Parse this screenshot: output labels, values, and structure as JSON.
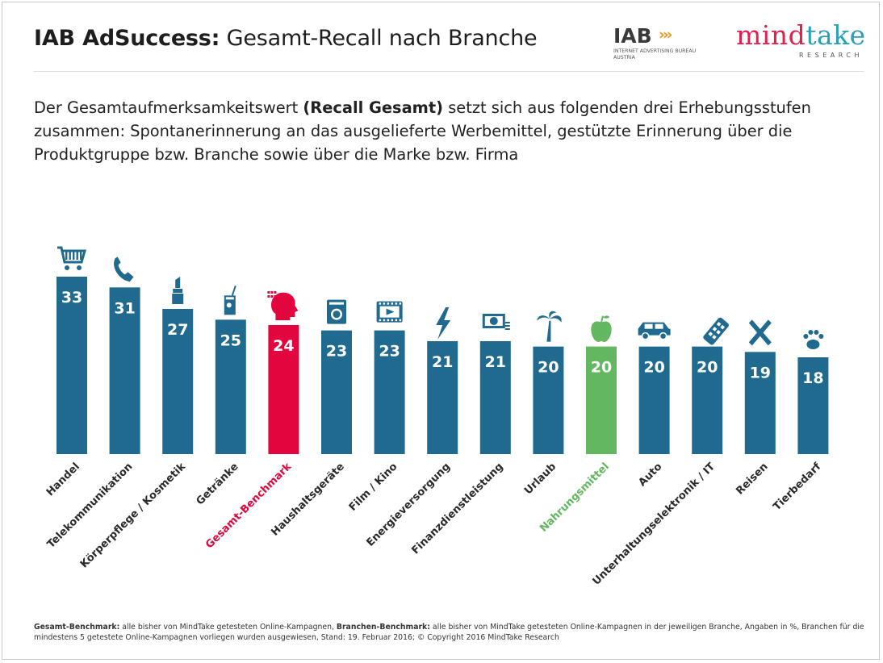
{
  "header": {
    "title_bold": "IAB AdSuccess:",
    "title_rest": "Gesamt-Recall nach Branche",
    "iab_logo_text": "IAB",
    "iab_logo_sub_1": "INTERNET ADVERTISING BUREAU",
    "iab_logo_sub_2": "AUSTRIA",
    "mindtake_logo_mind": "mind",
    "mindtake_logo_take": "take",
    "mindtake_logo_sub": "RESEARCH"
  },
  "intro": {
    "part1": "Der Gesamtaufmerksamkeitswert ",
    "bold": "(Recall Gesamt)",
    "part2": " setzt sich aus folgenden drei Erhebungsstufen zusammen: Spontanerinnerung an das ausgelieferte Werbemittel, gestützte Erinnerung über die Produktgruppe bzw. Branche sowie über die Marke bzw. Firma"
  },
  "colors": {
    "bar_default": "#1f6a8e",
    "bar_benchmark": "#e3063e",
    "bar_highlight": "#63b760",
    "label_default": "#2a2a2a"
  },
  "chart_data": {
    "type": "bar",
    "categories": [
      "Handel",
      "Telekommunikation",
      "Körperpflege / Kosmetik",
      "Getränke",
      "Gesamt-Benchmark",
      "Haushaltsgeräte",
      "Film / Kino",
      "Energieversorgung",
      "Finanzdienstleistung",
      "Urlaub",
      "Nahrungsmittel",
      "Auto",
      "Unterhaltungselektronik / IT",
      "Reisen",
      "Tierbedarf"
    ],
    "values": [
      33,
      31,
      27,
      25,
      24,
      23,
      23,
      21,
      21,
      20,
      20,
      20,
      20,
      19,
      18
    ],
    "icons": [
      "shopping-cart-icon",
      "phone-icon",
      "lipstick-icon",
      "drink-icon",
      "head-icon",
      "washing-machine-icon",
      "film-icon",
      "lightning-icon",
      "money-icon",
      "palm-tree-icon",
      "apple-icon",
      "car-icon",
      "remote-control-icon",
      "airplane-icon",
      "paw-icon"
    ],
    "highlight": {
      "Gesamt-Benchmark": "benchmark",
      "Nahrungsmittel": "highlight"
    },
    "title": "IAB AdSuccess: Gesamt-Recall nach Branche",
    "ylabel": "",
    "xlabel": "",
    "unit": "%",
    "ylim": [
      0,
      33
    ]
  },
  "footnote": {
    "bold1": "Gesamt-Benchmark:",
    "text1": " alle bisher von MindTake getesteten Online-Kampagnen, ",
    "bold2": "Branchen-Benchmark:",
    "text2": " alle bisher von MindTake getesteten Online-Kampagnen in der jeweiligen Branche, Angaben in %, Branchen für die mindestens 5 getestete Online-Kampagnen vorliegen wurden ausgewiesen, Stand: 19. Februar 2016; © Copyright 2016 MindTake Research"
  }
}
